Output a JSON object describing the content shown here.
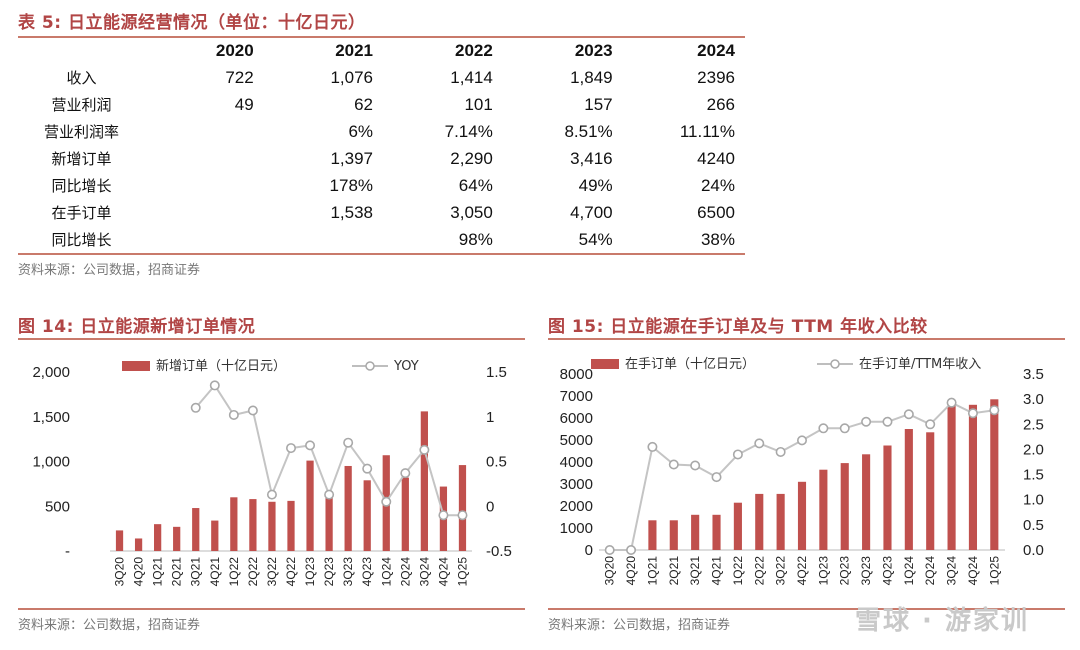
{
  "table": {
    "title": "表 5:  日立能源经营情况（单位：十亿日元）",
    "columns": [
      "2020",
      "2021",
      "2022",
      "2023",
      "2024"
    ],
    "rows": [
      {
        "label": "收入",
        "values": [
          "722",
          "1,076",
          "1,414",
          "1,849",
          "2396"
        ]
      },
      {
        "label": "营业利润",
        "values": [
          "49",
          "62",
          "101",
          "157",
          "266"
        ]
      },
      {
        "label": "营业利润率",
        "values": [
          "",
          "6%",
          "7.14%",
          "8.51%",
          "11.11%"
        ]
      },
      {
        "label": "新增订单",
        "values": [
          "",
          "1,397",
          "2,290",
          "3,416",
          "4240"
        ]
      },
      {
        "label": "同比增长",
        "values": [
          "",
          "178%",
          "64%",
          "49%",
          "24%"
        ]
      },
      {
        "label": "在手订单",
        "values": [
          "",
          "1,538",
          "3,050",
          "4,700",
          "6500"
        ]
      },
      {
        "label": "同比增长",
        "values": [
          "",
          "",
          "98%",
          "54%",
          "38%"
        ]
      }
    ],
    "source": "资料来源：公司数据，招商证券"
  },
  "chart14": {
    "title": "图 14:  日立能源新增订单情况",
    "source": "资料来源：公司数据，招商证券"
  },
  "chart15": {
    "title": "图 15:  日立能源在手订单及与 TTM 年收入比较",
    "source": "资料来源：公司数据，招商证券"
  },
  "watermark": "雪球 · 游家训",
  "chart_data": [
    {
      "type": "bar",
      "categories": [
        "3Q20",
        "4Q20",
        "1Q21",
        "2Q21",
        "3Q21",
        "4Q21",
        "1Q22",
        "2Q22",
        "3Q22",
        "4Q22",
        "1Q23",
        "2Q23",
        "3Q23",
        "4Q23",
        "1Q24",
        "2Q24",
        "3Q24",
        "4Q24",
        "1Q25"
      ],
      "series": [
        {
          "name": "新增订单（十亿日元）",
          "axis": "left",
          "type": "bar",
          "values": [
            230,
            140,
            300,
            270,
            480,
            340,
            600,
            580,
            550,
            560,
            1010,
            610,
            950,
            790,
            1070,
            820,
            1560,
            720,
            960
          ]
        },
        {
          "name": "YOY",
          "axis": "right",
          "type": "line",
          "values": [
            null,
            null,
            null,
            null,
            1.1,
            1.35,
            1.02,
            1.07,
            0.13,
            0.65,
            0.68,
            0.13,
            0.71,
            0.42,
            0.05,
            0.37,
            0.63,
            -0.1,
            -0.1
          ]
        }
      ],
      "ylim_left": [
        0,
        2000
      ],
      "yticks_left": [
        "-",
        "500",
        "1,000",
        "1,500",
        "2,000"
      ],
      "ylim_right": [
        -0.5,
        1.5
      ],
      "yticks_right": [
        "-0.5",
        "0",
        "0.5",
        "1",
        "1.5"
      ],
      "grid": false,
      "legend": "top"
    },
    {
      "type": "bar",
      "categories": [
        "3Q20",
        "4Q20",
        "1Q21",
        "2Q21",
        "3Q21",
        "4Q21",
        "1Q22",
        "2Q22",
        "3Q22",
        "4Q22",
        "1Q23",
        "2Q23",
        "3Q23",
        "4Q23",
        "1Q24",
        "2Q24",
        "3Q24",
        "4Q24",
        "1Q25"
      ],
      "series": [
        {
          "name": "在手订单（十亿日元）",
          "axis": "left",
          "type": "bar",
          "values": [
            0,
            0,
            1350,
            1350,
            1600,
            1600,
            2150,
            2550,
            2550,
            3100,
            3650,
            3950,
            4350,
            4750,
            5500,
            5350,
            6600,
            6600,
            6850
          ]
        },
        {
          "name": "在手订单/TTM年收入",
          "axis": "right",
          "type": "line",
          "values": [
            0,
            0,
            2.05,
            1.7,
            1.68,
            1.45,
            1.9,
            2.12,
            1.95,
            2.18,
            2.42,
            2.42,
            2.55,
            2.55,
            2.7,
            2.5,
            2.93,
            2.72,
            2.78
          ]
        }
      ],
      "ylim_left": [
        0,
        8000
      ],
      "yticks_left": [
        "0",
        "1000",
        "2000",
        "3000",
        "4000",
        "5000",
        "6000",
        "7000",
        "8000"
      ],
      "ylim_right": [
        0,
        3.5
      ],
      "yticks_right": [
        "0.0",
        "0.5",
        "1.0",
        "1.5",
        "2.0",
        "2.5",
        "3.0",
        "3.5"
      ],
      "grid": false,
      "legend": "top"
    }
  ]
}
